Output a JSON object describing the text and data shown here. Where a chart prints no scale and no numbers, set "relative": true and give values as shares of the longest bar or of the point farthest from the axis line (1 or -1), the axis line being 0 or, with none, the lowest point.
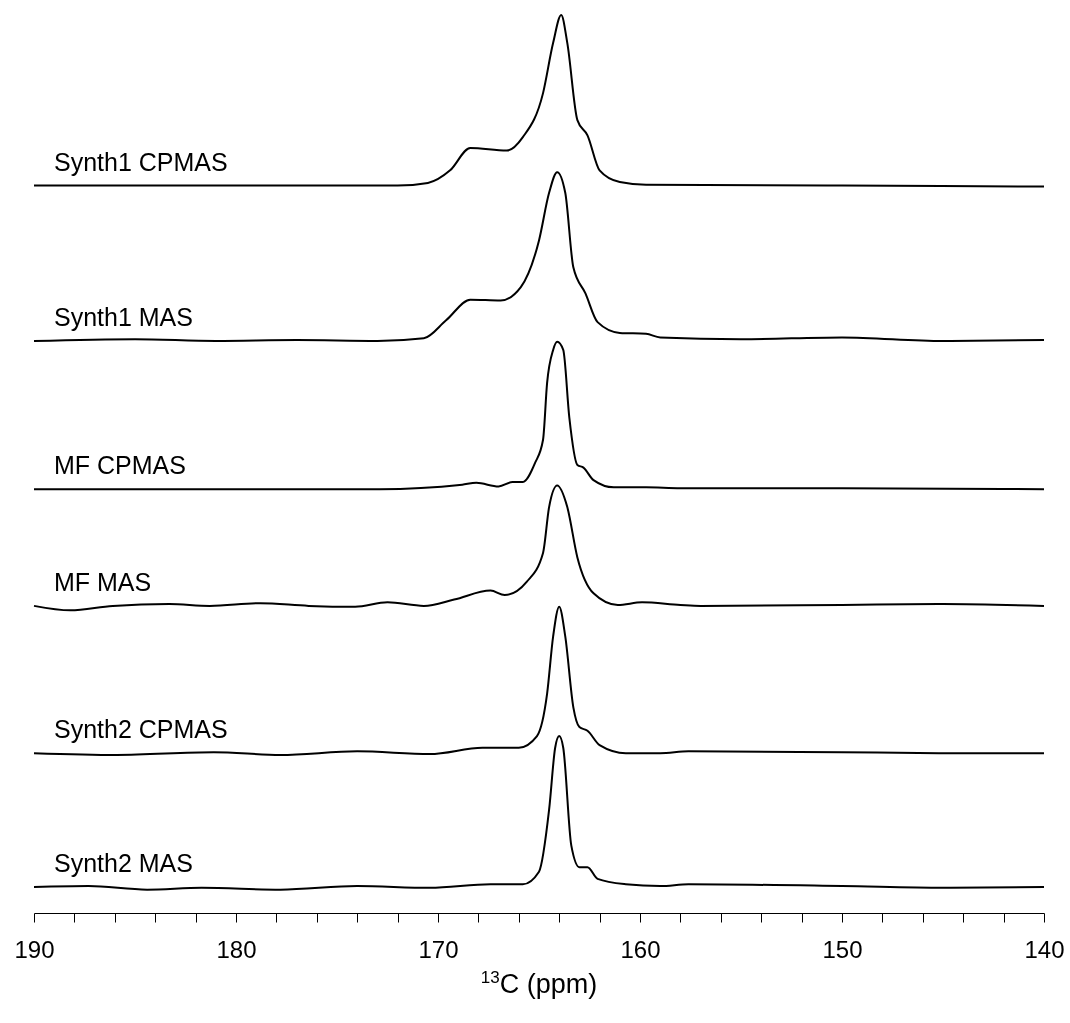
{
  "chart_data": {
    "type": "line",
    "relative": true,
    "xlabel": "$^{13}$C (ppm)",
    "xlim": [
      190,
      140
    ],
    "xticks": [
      190,
      {
        "value": 188,
        "label": null
      },
      {
        "value": 186,
        "label": null
      },
      {
        "value": 184,
        "label": null
      },
      {
        "value": 182,
        "label": null
      },
      180,
      {
        "value": 178,
        "label": null
      },
      {
        "value": 176,
        "label": null
      },
      {
        "value": 174,
        "label": null
      },
      {
        "value": 172,
        "label": null
      },
      170,
      {
        "value": 168,
        "label": null
      },
      {
        "value": 166,
        "label": null
      },
      {
        "value": 164,
        "label": null
      },
      {
        "value": 162,
        "label": null
      },
      160,
      {
        "value": 158,
        "label": null
      },
      {
        "value": 156,
        "label": null
      },
      {
        "value": 154,
        "label": null
      },
      {
        "value": 152,
        "label": null
      },
      150,
      {
        "value": 148,
        "label": null
      },
      {
        "value": 146,
        "label": null
      },
      {
        "value": 144,
        "label": null
      },
      {
        "value": 142,
        "label": null
      },
      140
    ],
    "grid": false,
    "series": [
      {
        "name": "Synth1 CPMAS",
        "color": "#000000",
        "x": [
          190,
          180,
          172,
          170.5,
          169.4,
          168.4,
          166.6,
          165.8,
          164.8,
          164.3,
          163.9,
          163.6,
          163.1,
          162.6,
          162.0,
          161.0,
          159.7,
          150,
          140
        ],
        "values": [
          0.81,
          0.81,
          0.81,
          0.813,
          0.827,
          0.852,
          0.849,
          0.864,
          0.913,
          0.969,
          1.0,
          0.969,
          0.883,
          0.866,
          0.827,
          0.814,
          0.811,
          0.81,
          0.809
        ]
      },
      {
        "name": "Synth1 MAS",
        "color": "#000000",
        "x": [
          190,
          185,
          181,
          177,
          173,
          170.7,
          169.6,
          168.4,
          166.9,
          165.9,
          165.0,
          164.5,
          164.1,
          163.7,
          163.3,
          162.7,
          162.1,
          161.0,
          159.7,
          159.0,
          155,
          150,
          145,
          140
        ],
        "values": [
          0.637,
          0.639,
          0.637,
          0.638,
          0.637,
          0.64,
          0.66,
          0.683,
          0.682,
          0.697,
          0.749,
          0.802,
          0.825,
          0.802,
          0.719,
          0.69,
          0.658,
          0.646,
          0.645,
          0.641,
          0.639,
          0.641,
          0.637,
          0.638
        ]
      },
      {
        "name": "MF CPMAS",
        "color": "#000000",
        "x": [
          190,
          180,
          175,
          172.9,
          168.8,
          168.1,
          167.0,
          166.3,
          165.8,
          165.2,
          164.8,
          164.6,
          164.3,
          164.1,
          163.8,
          163.5,
          163.1,
          162.8,
          162.3,
          161.3,
          159.7,
          158.0,
          150,
          140
        ],
        "values": [
          0.472,
          0.472,
          0.472,
          0.472,
          0.477,
          0.479,
          0.475,
          0.48,
          0.48,
          0.501,
          0.527,
          0.59,
          0.627,
          0.636,
          0.627,
          0.552,
          0.499,
          0.496,
          0.482,
          0.474,
          0.474,
          0.473,
          0.473,
          0.472
        ]
      },
      {
        "name": "MF MAS",
        "color": "#000000",
        "x": [
          190,
          188.2,
          186.1,
          183.3,
          181.3,
          178.8,
          176.4,
          174.1,
          172.5,
          170.7,
          169.2,
          167.4,
          166.7,
          165.6,
          164.8,
          164.5,
          164.1,
          163.6,
          163.1,
          162.3,
          161.1,
          159.9,
          158.0,
          157.0,
          150,
          145,
          140
        ],
        "values": [
          0.342,
          0.337,
          0.342,
          0.344,
          0.342,
          0.345,
          0.342,
          0.341,
          0.346,
          0.342,
          0.349,
          0.359,
          0.354,
          0.369,
          0.401,
          0.452,
          0.476,
          0.452,
          0.396,
          0.356,
          0.343,
          0.346,
          0.343,
          0.342,
          0.343,
          0.344,
          0.342
        ]
      },
      {
        "name": "Synth2 CPMAS",
        "color": "#000000",
        "x": [
          190,
          185.9,
          181.1,
          177.8,
          174.0,
          170.4,
          167.8,
          166.0,
          165.1,
          164.6,
          164.3,
          164.0,
          163.7,
          163.3,
          163.0,
          162.6,
          162.0,
          160.7,
          159.0,
          157.6,
          150,
          145,
          140
        ],
        "values": [
          0.178,
          0.176,
          0.179,
          0.176,
          0.18,
          0.177,
          0.184,
          0.184,
          0.197,
          0.244,
          0.308,
          0.341,
          0.308,
          0.229,
          0.207,
          0.203,
          0.187,
          0.178,
          0.178,
          0.18,
          0.179,
          0.178,
          0.178
        ]
      },
      {
        "name": "Synth2 MAS",
        "color": "#000000",
        "x": [
          190,
          187.3,
          184.4,
          181.7,
          177.8,
          174.0,
          170.4,
          167.4,
          165.8,
          165.0,
          164.5,
          164.2,
          164.0,
          163.8,
          163.4,
          163.0,
          162.6,
          162.1,
          160.7,
          159.0,
          157.6,
          150,
          145,
          140
        ],
        "values": [
          0.029,
          0.03,
          0.026,
          0.028,
          0.026,
          0.03,
          0.028,
          0.032,
          0.032,
          0.046,
          0.115,
          0.184,
          0.197,
          0.184,
          0.075,
          0.051,
          0.051,
          0.038,
          0.032,
          0.03,
          0.032,
          0.03,
          0.028,
          0.029
        ]
      }
    ]
  }
}
